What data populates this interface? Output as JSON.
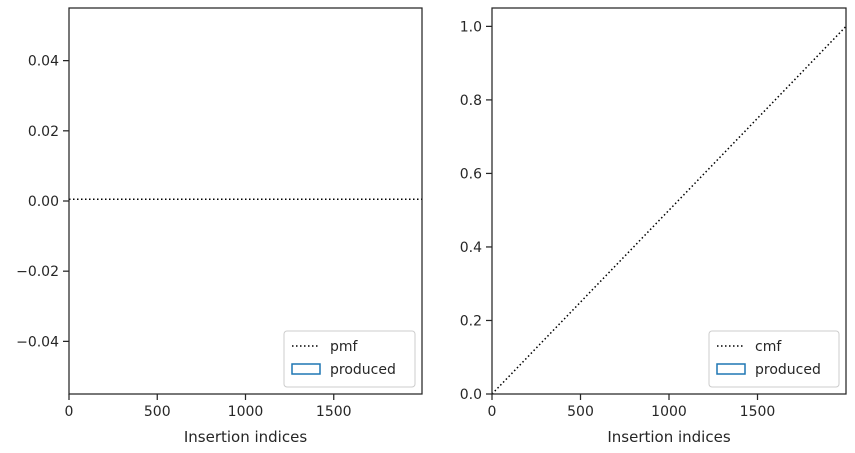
{
  "chart_data": [
    {
      "type": "line",
      "title": "",
      "xlabel": "Insertion indices",
      "ylabel": "",
      "xlim": [
        0,
        2000
      ],
      "ylim": [
        -0.055,
        0.055
      ],
      "xticks": [
        0,
        500,
        1000,
        1500
      ],
      "xtick_labels": [
        "0",
        "500",
        "1000",
        "1500"
      ],
      "yticks": [
        -0.04,
        -0.02,
        0.0,
        0.02,
        0.04
      ],
      "ytick_labels": [
        "−0.04",
        "−0.02",
        "0.00",
        "0.02",
        "0.04"
      ],
      "grid": false,
      "legend_position": "lower right",
      "series": [
        {
          "name": "pmf",
          "style": "dotted",
          "color": "#000000",
          "x": [
            0,
            2000
          ],
          "y": [
            0.0005,
            0.0005
          ]
        },
        {
          "name": "produced",
          "style": "histogram-outline",
          "color": "#1f77b4",
          "x": [],
          "y": []
        }
      ]
    },
    {
      "type": "line",
      "title": "",
      "xlabel": "Insertion indices",
      "ylabel": "",
      "xlim": [
        0,
        2000
      ],
      "ylim": [
        0.0,
        1.05
      ],
      "xticks": [
        0,
        500,
        1000,
        1500
      ],
      "xtick_labels": [
        "0",
        "500",
        "1000",
        "1500"
      ],
      "yticks": [
        0.0,
        0.2,
        0.4,
        0.6,
        0.8,
        1.0
      ],
      "ytick_labels": [
        "0.0",
        "0.2",
        "0.4",
        "0.6",
        "0.8",
        "1.0"
      ],
      "grid": false,
      "legend_position": "lower right",
      "series": [
        {
          "name": "cmf",
          "style": "dotted",
          "color": "#000000",
          "x": [
            0,
            2000
          ],
          "y": [
            0.0,
            1.0
          ]
        },
        {
          "name": "produced",
          "style": "histogram-outline",
          "color": "#1f77b4",
          "x": [],
          "y": []
        }
      ]
    }
  ]
}
